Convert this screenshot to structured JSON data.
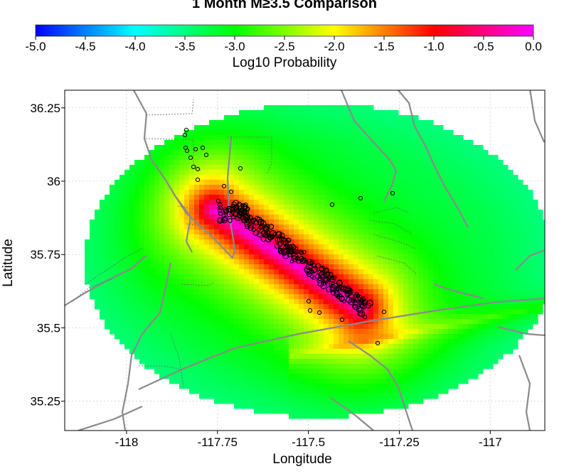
{
  "title": "1 Month M≥3.5 Comparison",
  "color_scale": {
    "label": "Log10 Probability",
    "ticks": [
      "-5.0",
      "-4.5",
      "-4.0",
      "-3.5",
      "-3.0",
      "-2.5",
      "-2.0",
      "-1.5",
      "-1.0",
      "-0.5",
      "0.0"
    ],
    "range": [
      -5.0,
      0.0
    ],
    "colors": [
      "#0000ff",
      "#00ffff",
      "#00ff00",
      "#ffff00",
      "#ff0000",
      "#ff00ff"
    ]
  },
  "map": {
    "xlabel": "Longitude",
    "ylabel": "Latitude",
    "xlim": [
      -118.17,
      -116.85
    ],
    "ylim": [
      35.15,
      36.31
    ],
    "x_ticks": [
      {
        "value": -118.0,
        "label": "-118"
      },
      {
        "value": -117.75,
        "label": "-117.75"
      },
      {
        "value": -117.5,
        "label": "-117.5"
      },
      {
        "value": -117.25,
        "label": "-117.25"
      },
      {
        "value": -117.0,
        "label": "-117"
      }
    ],
    "y_ticks": [
      {
        "value": 35.25,
        "label": "35.25"
      },
      {
        "value": 35.5,
        "label": "35.5"
      },
      {
        "value": 35.75,
        "label": "35.75"
      },
      {
        "value": 36.0,
        "label": "36"
      },
      {
        "value": 36.25,
        "label": "36.25"
      }
    ],
    "grid": true,
    "forecast_region": {
      "center": [
        -117.47,
        35.73
      ],
      "semi_axes_deg": [
        0.645,
        0.535
      ]
    },
    "fault_color": "#8a8a8a",
    "epicenter_color": "#000000"
  }
}
